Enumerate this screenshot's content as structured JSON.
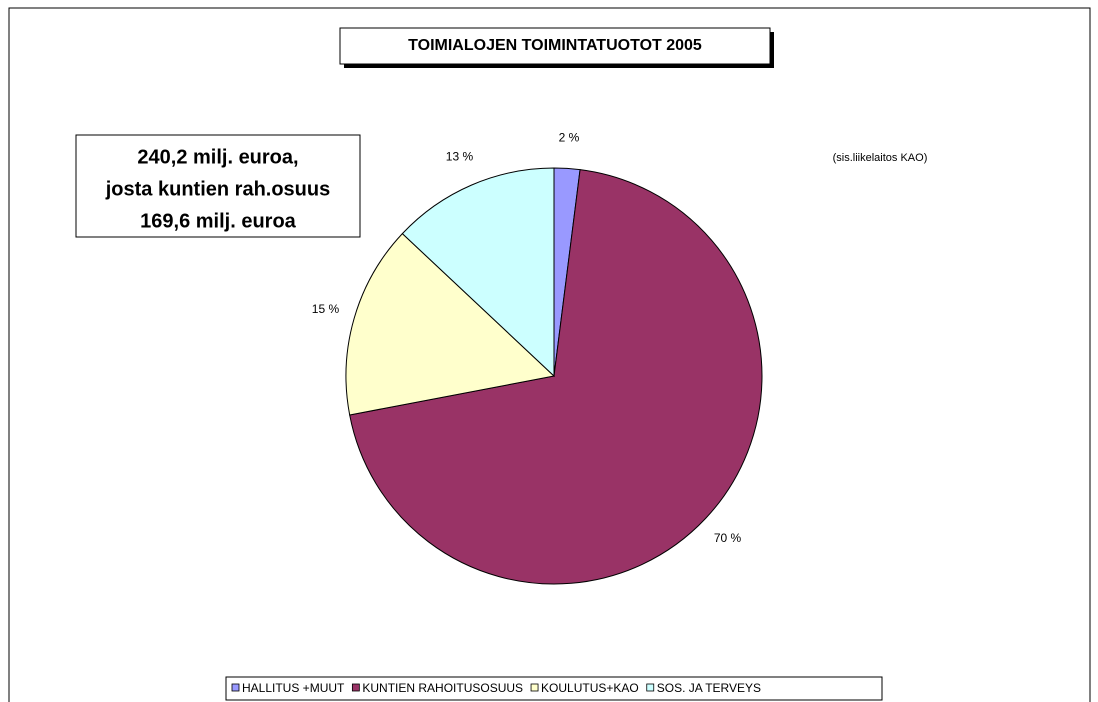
{
  "chart_data": {
    "type": "pie",
    "title": "TOIMIALOJEN TOIMINTATUOTOT 2005",
    "categories": [
      "HALLITUS +MUUT",
      "KUNTIEN RAHOITUSOSUUS",
      "KOULUTUS+KAO",
      "SOS. JA TERVEYS"
    ],
    "values": [
      2,
      70,
      15,
      13
    ],
    "value_labels": [
      "2 %",
      "70 %",
      "15 %",
      "13 %"
    ],
    "colors": [
      "#9999ff",
      "#993366",
      "#ffffcc",
      "#ccffff"
    ],
    "annotations": [
      "240,2 milj. euroa,",
      "josta kuntien rah.osuus",
      "169,6 milj. euroa",
      "(sis.liikelaitos KAO)"
    ],
    "legend": "bottom"
  }
}
